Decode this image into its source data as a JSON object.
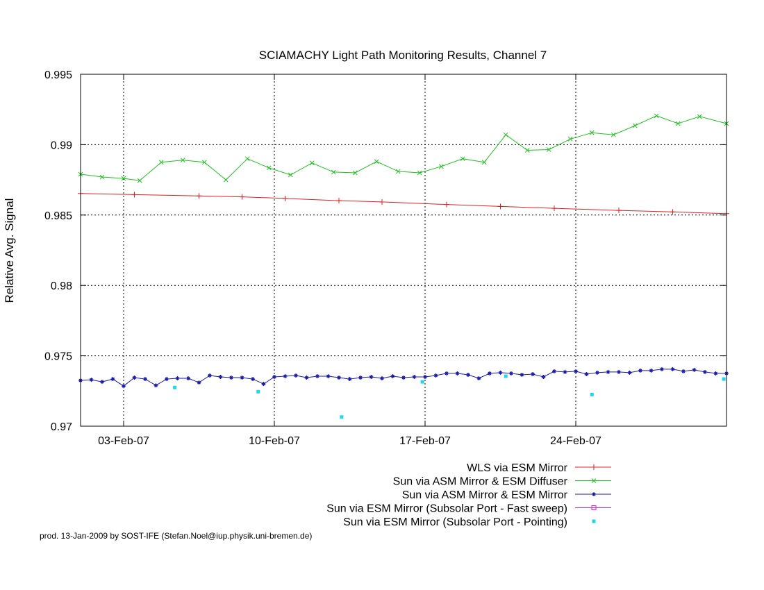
{
  "chart_data": {
    "type": "line",
    "title": "SCIAMACHY Light Path Monitoring Results, Channel 7",
    "ylabel": "Relative Avg. Signal",
    "xlabel": "",
    "xlim": [
      "2007-02-01T00:00",
      "2007-03-03T00:00"
    ],
    "ylim": [
      0.97,
      0.995
    ],
    "yticks": [
      0.97,
      0.975,
      0.98,
      0.985,
      0.99,
      0.995
    ],
    "ytick_labels": [
      "0.97",
      "0.975",
      "0.98",
      "0.985",
      "0.99",
      "0.995"
    ],
    "xticks": [
      "2007-02-03",
      "2007-02-10",
      "2007-02-17",
      "2007-02-24"
    ],
    "xtick_labels": [
      "03-Feb-07",
      "10-Feb-07",
      "17-Feb-07",
      "24-Feb-07"
    ],
    "grid": true,
    "legend_position": "below",
    "series": [
      {
        "name": "WLS via ESM Mirror",
        "color": "#e02020",
        "marker": "plus",
        "x": [
          "2007-02-01T00:00",
          "2007-02-03T12:00",
          "2007-02-06T12:00",
          "2007-02-08T12:00",
          "2007-02-10T12:00",
          "2007-02-13T00:00",
          "2007-02-15T00:00",
          "2007-02-18T00:00",
          "2007-02-20T12:00",
          "2007-02-23T00:00",
          "2007-02-26T00:00",
          "2007-02-28T12:00",
          "2007-03-03T00:00"
        ],
        "values": [
          0.98653,
          0.98645,
          0.98636,
          0.98629,
          0.98618,
          0.98602,
          0.98593,
          0.98575,
          0.98561,
          0.98548,
          0.98533,
          0.98522,
          0.9851
        ]
      },
      {
        "name": "Sun via ASM Mirror & ESM Diffuser",
        "color": "#20c020",
        "marker": "x",
        "x": [
          "2007-02-01T00:00",
          "2007-02-02T00:00",
          "2007-02-03T00:00",
          "2007-02-03T18:00",
          "2007-02-04T18:00",
          "2007-02-05T18:00",
          "2007-02-06T18:00",
          "2007-02-07T18:00",
          "2007-02-08T18:00",
          "2007-02-09T18:00",
          "2007-02-10T18:00",
          "2007-02-11T18:00",
          "2007-02-12T18:00",
          "2007-02-13T18:00",
          "2007-02-14T18:00",
          "2007-02-15T18:00",
          "2007-02-16T18:00",
          "2007-02-17T18:00",
          "2007-02-18T18:00",
          "2007-02-19T18:00",
          "2007-02-20T18:00",
          "2007-02-21T18:00",
          "2007-02-22T18:00",
          "2007-02-23T18:00",
          "2007-02-24T18:00",
          "2007-02-25T18:00",
          "2007-02-26T18:00",
          "2007-02-27T18:00",
          "2007-02-28T18:00",
          "2007-03-01T18:00",
          "2007-03-03T00:00"
        ],
        "values": [
          0.9879,
          0.9877,
          0.9876,
          0.98745,
          0.98875,
          0.9889,
          0.98875,
          0.9875,
          0.989,
          0.98835,
          0.98785,
          0.9887,
          0.98805,
          0.988,
          0.9888,
          0.9881,
          0.988,
          0.98845,
          0.989,
          0.98875,
          0.9907,
          0.9896,
          0.98965,
          0.9904,
          0.99085,
          0.9907,
          0.99135,
          0.99205,
          0.9915,
          0.992,
          0.9915
        ]
      },
      {
        "name": "Sun via ASM Mirror & ESM Mirror",
        "color": "#1a1aa8",
        "marker": "star",
        "x": [
          "2007-02-01T00:00",
          "2007-02-01T12:00",
          "2007-02-02T00:00",
          "2007-02-02T12:00",
          "2007-02-03T00:00",
          "2007-02-03T12:00",
          "2007-02-04T00:00",
          "2007-02-04T12:00",
          "2007-02-05T00:00",
          "2007-02-05T12:00",
          "2007-02-06T00:00",
          "2007-02-06T12:00",
          "2007-02-07T00:00",
          "2007-02-07T12:00",
          "2007-02-08T00:00",
          "2007-02-08T12:00",
          "2007-02-09T00:00",
          "2007-02-09T12:00",
          "2007-02-10T00:00",
          "2007-02-10T12:00",
          "2007-02-11T00:00",
          "2007-02-11T12:00",
          "2007-02-12T00:00",
          "2007-02-12T12:00",
          "2007-02-13T00:00",
          "2007-02-13T12:00",
          "2007-02-14T00:00",
          "2007-02-14T12:00",
          "2007-02-15T00:00",
          "2007-02-15T12:00",
          "2007-02-16T00:00",
          "2007-02-16T12:00",
          "2007-02-17T00:00",
          "2007-02-17T12:00",
          "2007-02-18T00:00",
          "2007-02-18T12:00",
          "2007-02-19T00:00",
          "2007-02-19T12:00",
          "2007-02-20T00:00",
          "2007-02-20T12:00",
          "2007-02-21T00:00",
          "2007-02-21T12:00",
          "2007-02-22T00:00",
          "2007-02-22T12:00",
          "2007-02-23T00:00",
          "2007-02-23T12:00",
          "2007-02-24T00:00",
          "2007-02-24T12:00",
          "2007-02-25T00:00",
          "2007-02-25T12:00",
          "2007-02-26T00:00",
          "2007-02-26T12:00",
          "2007-02-27T00:00",
          "2007-02-27T12:00",
          "2007-02-28T00:00",
          "2007-02-28T12:00",
          "2007-03-01T00:00",
          "2007-03-01T12:00",
          "2007-03-02T00:00",
          "2007-03-02T12:00",
          "2007-03-03T00:00"
        ],
        "values": [
          0.97325,
          0.9733,
          0.97315,
          0.97335,
          0.97285,
          0.97345,
          0.97335,
          0.9729,
          0.97335,
          0.9734,
          0.9734,
          0.9731,
          0.9736,
          0.9735,
          0.97345,
          0.97345,
          0.97335,
          0.973,
          0.9735,
          0.97355,
          0.9736,
          0.97345,
          0.97355,
          0.97355,
          0.97345,
          0.97335,
          0.97345,
          0.9735,
          0.9734,
          0.97355,
          0.97345,
          0.9735,
          0.9735,
          0.9736,
          0.97375,
          0.97375,
          0.97365,
          0.9734,
          0.97375,
          0.9738,
          0.97375,
          0.97365,
          0.9737,
          0.9735,
          0.9739,
          0.97385,
          0.9739,
          0.9737,
          0.9738,
          0.97385,
          0.97385,
          0.9738,
          0.97395,
          0.97395,
          0.97405,
          0.97405,
          0.9739,
          0.974,
          0.97385,
          0.97375,
          0.97375
        ]
      },
      {
        "name": "Sun via ESM Mirror (Subsolar Port - Fast sweep)",
        "color": "#d020d0",
        "marker": "square",
        "x": [],
        "values": []
      },
      {
        "name": "Sun via ESM Mirror (Subsolar Port - Pointing)",
        "color": "#20d8e8",
        "marker": "dot",
        "x": [
          "2007-02-05T09:00",
          "2007-02-09T06:00",
          "2007-02-13T03:00",
          "2007-02-16T21:00",
          "2007-02-20T18:00",
          "2007-02-24T18:00",
          "2007-03-02T21:00"
        ],
        "values": [
          0.97275,
          0.97245,
          0.97065,
          0.97315,
          0.97355,
          0.97225,
          0.97335
        ]
      }
    ]
  },
  "footer": {
    "credit": "prod. 13-Jan-2009 by SOST-IFE (Stefan.Noel@iup.physik.uni-bremen.de)"
  }
}
